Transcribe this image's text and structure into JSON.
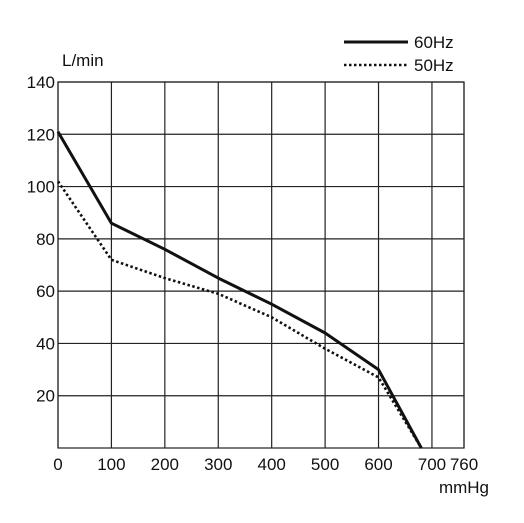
{
  "chart_data": {
    "type": "line",
    "title": "",
    "ylabel": "L/min",
    "xlabel": "mmHg",
    "xlim": [
      0,
      760
    ],
    "ylim": [
      0,
      140
    ],
    "x_ticks": [
      0,
      100,
      200,
      300,
      400,
      500,
      600,
      700,
      760
    ],
    "y_ticks": [
      20,
      40,
      60,
      80,
      100,
      120,
      140
    ],
    "grid": true,
    "legend_position": "top-right",
    "series": [
      {
        "name": "60Hz",
        "line_style": "solid",
        "color": "#111111",
        "points": [
          [
            0,
            121
          ],
          [
            100,
            86
          ],
          [
            200,
            76
          ],
          [
            300,
            65
          ],
          [
            400,
            55
          ],
          [
            500,
            44
          ],
          [
            600,
            30
          ],
          [
            680,
            0
          ]
        ]
      },
      {
        "name": "50Hz",
        "line_style": "dotted",
        "color": "#111111",
        "points": [
          [
            0,
            102
          ],
          [
            100,
            72
          ],
          [
            200,
            65
          ],
          [
            300,
            59
          ],
          [
            400,
            50
          ],
          [
            500,
            38
          ],
          [
            600,
            27
          ],
          [
            680,
            0
          ]
        ]
      }
    ]
  }
}
